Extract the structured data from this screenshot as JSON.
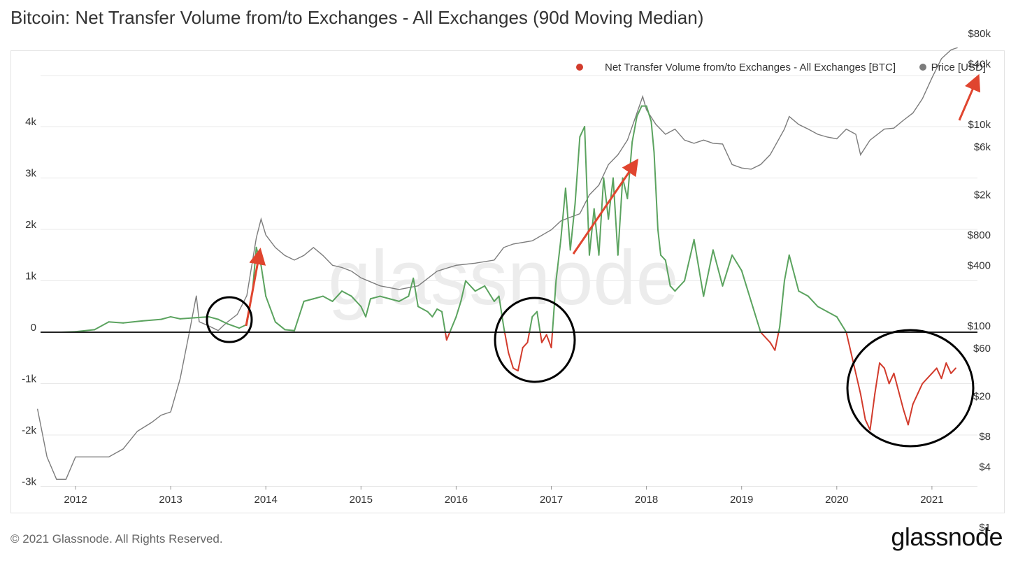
{
  "title": "Bitcoin: Net Transfer Volume from/to Exchanges - All Exchanges (90d Moving Median)",
  "footer": "© 2021 Glassnode. All Rights Reserved.",
  "brand": "glassnode",
  "watermark": "glassnode",
  "colors": {
    "positive": "#5ba35f",
    "negative": "#d23b2c",
    "price": "#7c7c7c",
    "zero_line": "#222222",
    "arrow": "#e0452f",
    "circle": "#000000",
    "grid": "#e8e8e8"
  },
  "chart_data": {
    "type": "line",
    "title": "Bitcoin: Net Transfer Volume from/to Exchanges - All Exchanges (90d Moving Median)",
    "legend": {
      "placement": "top-right",
      "entries": [
        {
          "name": "Net Transfer Volume from/to Exchanges - All Exchanges [BTC]",
          "color": "#d23b2c"
        },
        {
          "name": "Price [USD]",
          "color": "#7c7c7c"
        }
      ]
    },
    "x_ticks": [
      "2012",
      "2013",
      "2014",
      "2015",
      "2016",
      "2017",
      "2018",
      "2019",
      "2020",
      "2021"
    ],
    "xlim": [
      2011.6,
      2021.35
    ],
    "y_left": {
      "ticks": [
        4000,
        3000,
        2000,
        1000,
        0,
        -1000,
        -2000,
        -3000
      ],
      "tick_labels": [
        "4k",
        "3k",
        "2k",
        "1k",
        "0",
        "-1k",
        "-2k",
        "-3k"
      ],
      "lim": [
        -3000,
        5000
      ]
    },
    "y_right": {
      "scale": "log",
      "tick_values": [
        80000,
        40000,
        10000,
        6000,
        2000,
        800,
        400,
        100,
        60,
        20,
        8,
        4,
        1
      ],
      "tick_labels": [
        "$80k",
        "$40k",
        "$10k",
        "$6k",
        "$2k",
        "$800",
        "$400",
        "$100",
        "$60",
        "$20",
        "$8",
        "$4",
        "$1"
      ]
    },
    "grid": true,
    "series": [
      {
        "name": "Net Transfer Volume from/to Exchanges - All Exchanges [BTC]",
        "axis": "left",
        "x": [
          2011.85,
          2012.0,
          2012.2,
          2012.35,
          2012.5,
          2012.7,
          2012.9,
          2013.0,
          2013.1,
          2013.25,
          2013.4,
          2013.5,
          2013.6,
          2013.72,
          2013.8,
          2013.86,
          2013.9,
          2013.95,
          2014.0,
          2014.1,
          2014.2,
          2014.3,
          2014.4,
          2014.5,
          2014.6,
          2014.7,
          2014.8,
          2014.9,
          2015.0,
          2015.05,
          2015.1,
          2015.2,
          2015.3,
          2015.4,
          2015.5,
          2015.55,
          2015.6,
          2015.7,
          2015.75,
          2015.8,
          2015.85,
          2015.9,
          2016.0,
          2016.05,
          2016.1,
          2016.2,
          2016.3,
          2016.4,
          2016.45,
          2016.5,
          2016.55,
          2016.6,
          2016.65,
          2016.7,
          2016.75,
          2016.8,
          2016.85,
          2016.9,
          2016.95,
          2017.0,
          2017.05,
          2017.1,
          2017.15,
          2017.2,
          2017.25,
          2017.3,
          2017.35,
          2017.4,
          2017.45,
          2017.5,
          2017.55,
          2017.6,
          2017.65,
          2017.7,
          2017.75,
          2017.8,
          2017.85,
          2017.9,
          2017.95,
          2018.0,
          2018.05,
          2018.08,
          2018.12,
          2018.15,
          2018.2,
          2018.25,
          2018.3,
          2018.4,
          2018.5,
          2018.6,
          2018.7,
          2018.8,
          2018.9,
          2019.0,
          2019.1,
          2019.2,
          2019.3,
          2019.35,
          2019.4,
          2019.45,
          2019.5,
          2019.6,
          2019.7,
          2019.75,
          2019.8,
          2019.9,
          2020.0,
          2020.1,
          2020.2,
          2020.25,
          2020.3,
          2020.35,
          2020.4,
          2020.45,
          2020.5,
          2020.55,
          2020.6,
          2020.7,
          2020.75,
          2020.8,
          2020.85,
          2020.9,
          2021.0,
          2021.05,
          2021.1,
          2021.15,
          2021.2,
          2021.25
        ],
        "y": [
          0,
          10,
          50,
          200,
          180,
          220,
          250,
          300,
          260,
          280,
          300,
          250,
          160,
          80,
          150,
          800,
          1650,
          1300,
          700,
          200,
          50,
          30,
          600,
          650,
          700,
          600,
          800,
          700,
          500,
          300,
          650,
          700,
          650,
          600,
          700,
          1050,
          500,
          400,
          300,
          450,
          400,
          -150,
          300,
          600,
          1000,
          800,
          900,
          600,
          700,
          100,
          -400,
          -700,
          -750,
          -300,
          -200,
          300,
          400,
          -200,
          -50,
          -300,
          1000,
          1800,
          2800,
          1600,
          2500,
          3800,
          4000,
          1500,
          2400,
          1500,
          3000,
          2200,
          3000,
          1500,
          3000,
          2600,
          3700,
          4200,
          4400,
          4400,
          4100,
          3500,
          2000,
          1500,
          1400,
          900,
          800,
          1000,
          1800,
          700,
          1600,
          900,
          1500,
          1200,
          600,
          0,
          -200,
          -350,
          100,
          1000,
          1500,
          800,
          700,
          600,
          500,
          400,
          300,
          0,
          -800,
          -1200,
          -1700,
          -1900,
          -1200,
          -600,
          -700,
          -1000,
          -800,
          -1500,
          -1800,
          -1400,
          -1200,
          -1000,
          -800,
          -700,
          -900,
          -600,
          -800,
          -700
        ]
      },
      {
        "name": "Price [USD]",
        "axis": "right",
        "x": [
          2011.6,
          2011.7,
          2011.8,
          2011.9,
          2012.0,
          2012.1,
          2012.2,
          2012.35,
          2012.5,
          2012.65,
          2012.8,
          2012.9,
          2013.0,
          2013.1,
          2013.2,
          2013.27,
          2013.3,
          2013.4,
          2013.5,
          2013.55,
          2013.6,
          2013.7,
          2013.8,
          2013.9,
          2013.95,
          2014.0,
          2014.1,
          2014.2,
          2014.3,
          2014.4,
          2014.5,
          2014.6,
          2014.7,
          2014.8,
          2014.9,
          2015.0,
          2015.2,
          2015.4,
          2015.6,
          2015.8,
          2016.0,
          2016.2,
          2016.4,
          2016.5,
          2016.6,
          2016.8,
          2017.0,
          2017.1,
          2017.2,
          2017.3,
          2017.4,
          2017.5,
          2017.6,
          2017.7,
          2017.8,
          2017.9,
          2017.96,
          2018.0,
          2018.1,
          2018.2,
          2018.3,
          2018.4,
          2018.5,
          2018.6,
          2018.7,
          2018.8,
          2018.9,
          2019.0,
          2019.1,
          2019.2,
          2019.3,
          2019.45,
          2019.5,
          2019.6,
          2019.7,
          2019.8,
          2019.9,
          2020.0,
          2020.1,
          2020.2,
          2020.25,
          2020.35,
          2020.5,
          2020.6,
          2020.7,
          2020.8,
          2020.9,
          2021.0,
          2021.1,
          2021.2,
          2021.27
        ],
        "y": [
          15,
          5,
          3,
          3,
          5,
          5,
          5,
          5,
          6,
          9,
          11,
          13,
          14,
          30,
          90,
          200,
          110,
          100,
          90,
          100,
          110,
          130,
          200,
          750,
          1150,
          800,
          600,
          500,
          450,
          500,
          600,
          500,
          400,
          380,
          350,
          300,
          250,
          230,
          250,
          350,
          400,
          420,
          450,
          600,
          650,
          700,
          900,
          1100,
          1200,
          1300,
          2000,
          2500,
          4000,
          5000,
          7000,
          13000,
          19000,
          14000,
          10000,
          8000,
          9000,
          7000,
          6500,
          7000,
          6500,
          6400,
          4000,
          3700,
          3600,
          4000,
          5000,
          9000,
          12000,
          10000,
          9000,
          8000,
          7500,
          7200,
          9000,
          8000,
          5000,
          7000,
          9000,
          9200,
          11000,
          13000,
          18000,
          29000,
          45000,
          55000,
          58000
        ]
      }
    ],
    "annotations": [
      {
        "type": "arrow",
        "label": ""
      },
      {
        "type": "arrow",
        "label": ""
      },
      {
        "type": "arrow",
        "label": ""
      },
      {
        "type": "circle",
        "label": ""
      },
      {
        "type": "circle",
        "label": ""
      },
      {
        "type": "circle",
        "label": ""
      }
    ]
  }
}
